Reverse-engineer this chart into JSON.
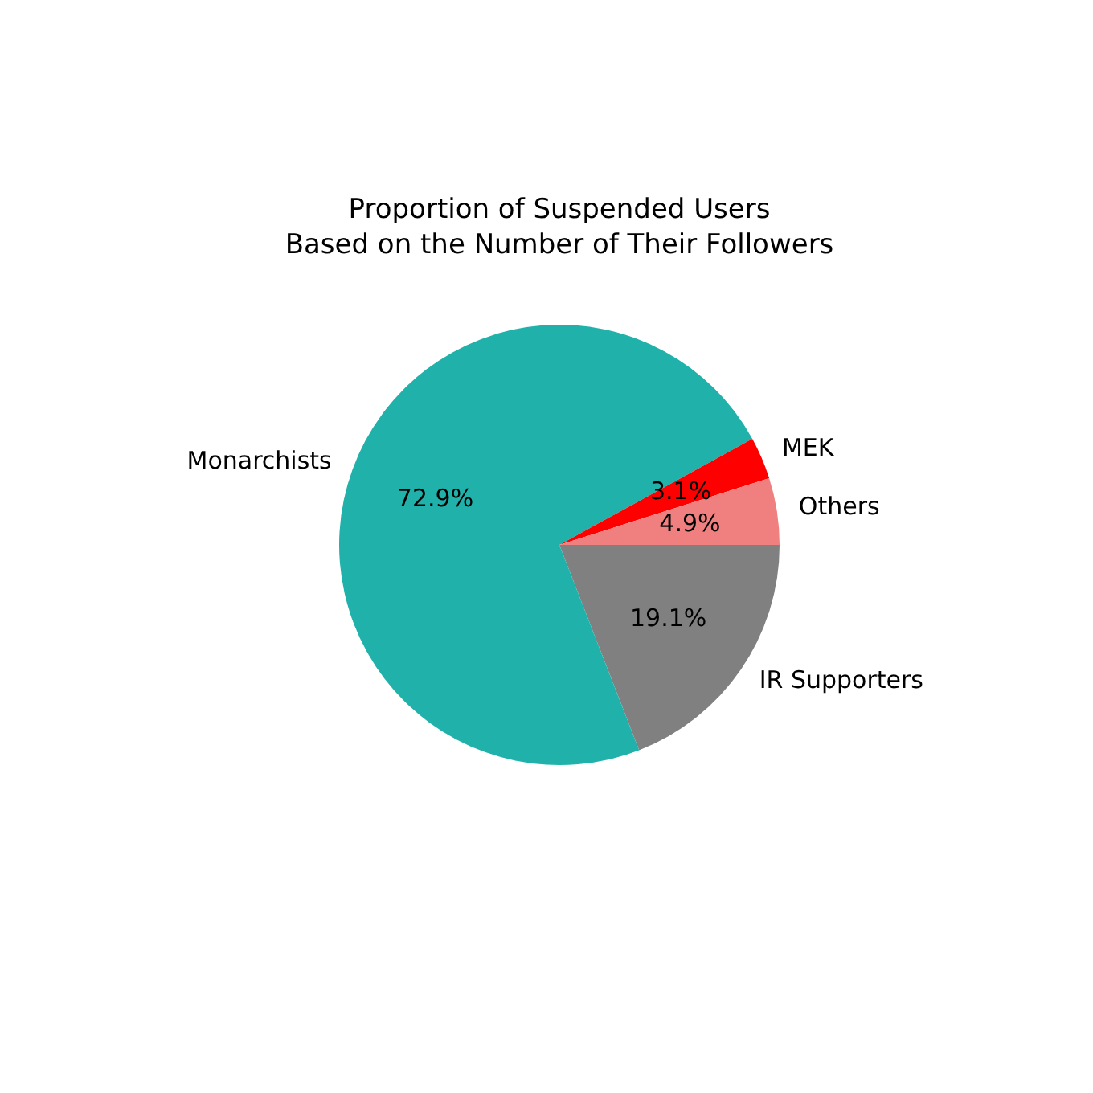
{
  "chart_data": {
    "type": "pie",
    "title": "Proportion of Suspended Users\nBased on the Number of Their Followers",
    "categories": [
      "IR Supporters",
      "Monarchists",
      "MEK",
      "Others"
    ],
    "values": [
      19.1,
      72.9,
      3.1,
      4.9
    ],
    "colors": [
      "#808080",
      "#20b2aa",
      "#ff0000",
      "#f08080"
    ],
    "value_labels": [
      "19.1%",
      "72.9%",
      "3.1%",
      "4.9%"
    ]
  }
}
